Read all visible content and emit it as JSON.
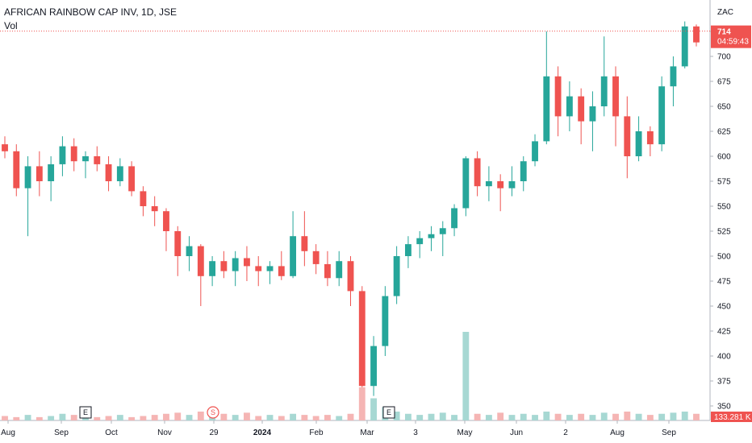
{
  "header": {
    "title": "AFRICAN RAINBOW CAP INV, 1D, JSE",
    "volume_label": "Vol",
    "currency": "ZAC"
  },
  "price_tag": {
    "value": "714",
    "countdown": "04:59:43"
  },
  "volume_tag": {
    "value": "133.281 K"
  },
  "colors": {
    "up": "#26a69a",
    "down": "#ef5350",
    "up_vol": "#a7d8d3",
    "down_vol": "#f5b5b4",
    "axis": "#b2b5be"
  },
  "events": [
    {
      "type": "earnings",
      "label": "E",
      "date": "Sep 12"
    },
    {
      "type": "split",
      "label": "S",
      "date": "Dec 28"
    },
    {
      "type": "earnings",
      "label": "E",
      "date": "Mar 28"
    }
  ],
  "chart_data": {
    "type": "candlestick",
    "ylim": [
      337,
      737
    ],
    "y_ticks": [
      350,
      375,
      400,
      425,
      450,
      475,
      500,
      525,
      550,
      575,
      600,
      625,
      650,
      675,
      700,
      725
    ],
    "x_ticks": [
      "Aug",
      "Sep",
      "Oct",
      "Nov",
      "29",
      "2024",
      "Feb",
      "Mar",
      "3",
      "May",
      "Jun",
      "2",
      "Aug",
      "Sep"
    ],
    "current_price": 714,
    "series": [
      {
        "date": "Aug 1",
        "o": 612,
        "h": 620,
        "l": 598,
        "c": 605
      },
      {
        "date": "Aug 8",
        "o": 605,
        "h": 612,
        "l": 560,
        "c": 568
      },
      {
        "date": "Aug 15",
        "o": 568,
        "h": 600,
        "l": 520,
        "c": 590
      },
      {
        "date": "Aug 22",
        "o": 590,
        "h": 605,
        "l": 560,
        "c": 575
      },
      {
        "date": "Aug 29",
        "o": 575,
        "h": 600,
        "l": 555,
        "c": 592
      },
      {
        "date": "Sep 5",
        "o": 592,
        "h": 620,
        "l": 580,
        "c": 610
      },
      {
        "date": "Sep 12",
        "o": 610,
        "h": 618,
        "l": 585,
        "c": 595
      },
      {
        "date": "Sep 19",
        "o": 595,
        "h": 605,
        "l": 578,
        "c": 600
      },
      {
        "date": "Sep 26",
        "o": 600,
        "h": 610,
        "l": 585,
        "c": 592
      },
      {
        "date": "Oct 3",
        "o": 592,
        "h": 600,
        "l": 565,
        "c": 575
      },
      {
        "date": "Oct 10",
        "o": 575,
        "h": 598,
        "l": 570,
        "c": 590
      },
      {
        "date": "Oct 17",
        "o": 590,
        "h": 595,
        "l": 560,
        "c": 565
      },
      {
        "date": "Oct 24",
        "o": 565,
        "h": 570,
        "l": 540,
        "c": 550
      },
      {
        "date": "Oct 31",
        "o": 550,
        "h": 560,
        "l": 530,
        "c": 545
      },
      {
        "date": "Nov 7",
        "o": 545,
        "h": 548,
        "l": 505,
        "c": 525
      },
      {
        "date": "Nov 14",
        "o": 525,
        "h": 530,
        "l": 480,
        "c": 500
      },
      {
        "date": "Nov 21",
        "o": 500,
        "h": 520,
        "l": 485,
        "c": 510
      },
      {
        "date": "Nov 28",
        "o": 510,
        "h": 512,
        "l": 450,
        "c": 480
      },
      {
        "date": "Dec 5",
        "o": 480,
        "h": 500,
        "l": 470,
        "c": 495
      },
      {
        "date": "Dec 12",
        "o": 495,
        "h": 505,
        "l": 478,
        "c": 485
      },
      {
        "date": "Dec 19",
        "o": 485,
        "h": 505,
        "l": 470,
        "c": 498
      },
      {
        "date": "Dec 28",
        "o": 498,
        "h": 510,
        "l": 475,
        "c": 490
      },
      {
        "date": "Jan 4",
        "o": 490,
        "h": 500,
        "l": 470,
        "c": 485
      },
      {
        "date": "Jan 11",
        "o": 485,
        "h": 495,
        "l": 472,
        "c": 490
      },
      {
        "date": "Jan 18",
        "o": 490,
        "h": 505,
        "l": 476,
        "c": 480
      },
      {
        "date": "Jan 25",
        "o": 480,
        "h": 545,
        "l": 478,
        "c": 520
      },
      {
        "date": "Feb 1",
        "o": 520,
        "h": 545,
        "l": 490,
        "c": 505
      },
      {
        "date": "Feb 8",
        "o": 505,
        "h": 512,
        "l": 482,
        "c": 492
      },
      {
        "date": "Feb 15",
        "o": 492,
        "h": 505,
        "l": 470,
        "c": 478
      },
      {
        "date": "Feb 22",
        "o": 478,
        "h": 505,
        "l": 470,
        "c": 495
      },
      {
        "date": "Feb 29",
        "o": 495,
        "h": 500,
        "l": 450,
        "c": 465
      },
      {
        "date": "Mar 7",
        "o": 465,
        "h": 470,
        "l": 345,
        "c": 370
      },
      {
        "date": "Mar 14",
        "o": 370,
        "h": 420,
        "l": 360,
        "c": 410
      },
      {
        "date": "Mar 21",
        "o": 410,
        "h": 470,
        "l": 400,
        "c": 460
      },
      {
        "date": "Mar 28",
        "o": 460,
        "h": 510,
        "l": 452,
        "c": 500
      },
      {
        "date": "Apr 4",
        "o": 500,
        "h": 520,
        "l": 488,
        "c": 512
      },
      {
        "date": "Apr 11",
        "o": 512,
        "h": 525,
        "l": 498,
        "c": 518
      },
      {
        "date": "Apr 18",
        "o": 518,
        "h": 530,
        "l": 505,
        "c": 522
      },
      {
        "date": "Apr 25",
        "o": 522,
        "h": 535,
        "l": 500,
        "c": 528
      },
      {
        "date": "May 2",
        "o": 528,
        "h": 552,
        "l": 520,
        "c": 548
      },
      {
        "date": "May 9",
        "o": 548,
        "h": 600,
        "l": 540,
        "c": 598
      },
      {
        "date": "May 16",
        "o": 598,
        "h": 605,
        "l": 560,
        "c": 570
      },
      {
        "date": "May 23",
        "o": 570,
        "h": 590,
        "l": 555,
        "c": 575
      },
      {
        "date": "May 30",
        "o": 575,
        "h": 582,
        "l": 545,
        "c": 568
      },
      {
        "date": "Jun 6",
        "o": 568,
        "h": 590,
        "l": 560,
        "c": 575
      },
      {
        "date": "Jun 13",
        "o": 575,
        "h": 600,
        "l": 565,
        "c": 595
      },
      {
        "date": "Jun 20",
        "o": 595,
        "h": 622,
        "l": 590,
        "c": 615
      },
      {
        "date": "Jun 27",
        "o": 615,
        "h": 725,
        "l": 612,
        "c": 680
      },
      {
        "date": "Jul 4",
        "o": 680,
        "h": 690,
        "l": 620,
        "c": 640
      },
      {
        "date": "Jul 11",
        "o": 640,
        "h": 675,
        "l": 625,
        "c": 660
      },
      {
        "date": "Jul 18",
        "o": 660,
        "h": 668,
        "l": 612,
        "c": 635
      },
      {
        "date": "Jul 25",
        "o": 635,
        "h": 665,
        "l": 605,
        "c": 650
      },
      {
        "date": "Aug 1",
        "o": 650,
        "h": 720,
        "l": 640,
        "c": 680
      },
      {
        "date": "Aug 8",
        "o": 680,
        "h": 690,
        "l": 610,
        "c": 640
      },
      {
        "date": "Aug 15",
        "o": 640,
        "h": 660,
        "l": 578,
        "c": 600
      },
      {
        "date": "Aug 22",
        "o": 600,
        "h": 640,
        "l": 595,
        "c": 625
      },
      {
        "date": "Aug 29",
        "o": 625,
        "h": 630,
        "l": 600,
        "c": 612
      },
      {
        "date": "Sep 5",
        "o": 612,
        "h": 680,
        "l": 605,
        "c": 670
      },
      {
        "date": "Sep 12",
        "o": 670,
        "h": 700,
        "l": 650,
        "c": 690
      },
      {
        "date": "Sep 19",
        "o": 690,
        "h": 735,
        "l": 688,
        "c": 730
      },
      {
        "date": "Sep 24",
        "o": 730,
        "h": 732,
        "l": 710,
        "c": 714
      }
    ],
    "volume": [
      4,
      3,
      5,
      3,
      4,
      6,
      5,
      4,
      3,
      4,
      5,
      3,
      4,
      5,
      6,
      7,
      5,
      8,
      9,
      6,
      5,
      7,
      4,
      5,
      4,
      6,
      5,
      4,
      5,
      4,
      6,
      30,
      20,
      12,
      8,
      6,
      5,
      6,
      7,
      5,
      80,
      6,
      5,
      7,
      5,
      6,
      5,
      8,
      6,
      5,
      6,
      5,
      7,
      6,
      8,
      6,
      5,
      6,
      7,
      8,
      6
    ]
  }
}
